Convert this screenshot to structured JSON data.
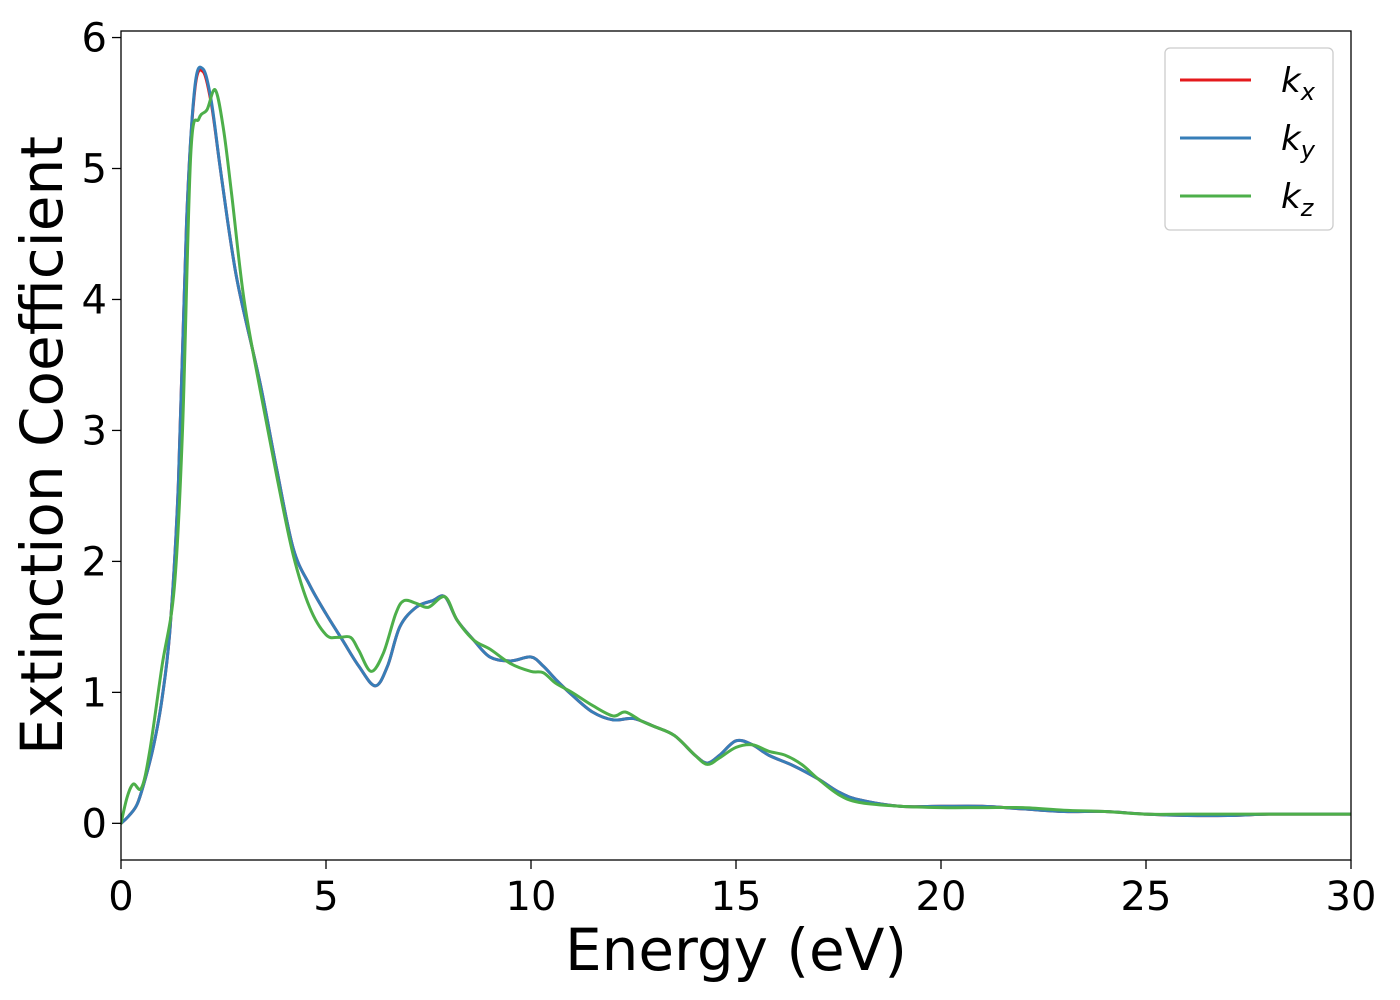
{
  "chart_data": {
    "type": "line",
    "title": "",
    "xlabel": "Energy (eV)",
    "ylabel": "Extinction Coefficient",
    "xlim": [
      0,
      30
    ],
    "ylim": [
      -0.28,
      6.05
    ],
    "xticks": [
      0,
      5,
      10,
      15,
      20,
      25,
      30
    ],
    "yticks": [
      0,
      1,
      2,
      3,
      4,
      5,
      6
    ],
    "grid": false,
    "legend": {
      "placement": "top-right"
    },
    "series": [
      {
        "name": "k",
        "subscript": "x",
        "color": "#e41a1c",
        "x": [
          0,
          0.2,
          0.4,
          0.6,
          0.8,
          1.0,
          1.2,
          1.4,
          1.6,
          1.8,
          2.0,
          2.2,
          2.4,
          2.6,
          2.8,
          3.0,
          3.4,
          3.8,
          4.2,
          4.6,
          5.0,
          5.4,
          5.8,
          6.2,
          6.5,
          6.8,
          7.2,
          7.6,
          7.9,
          8.2,
          8.6,
          9.0,
          9.5,
          10.0,
          10.3,
          10.6,
          11.0,
          11.5,
          12.0,
          12.5,
          13.0,
          13.5,
          14.0,
          14.3,
          14.6,
          15.0,
          15.4,
          15.8,
          16.4,
          17.0,
          17.5,
          18.0,
          19.0,
          20.0,
          21.0,
          22.0,
          23.0,
          24.0,
          25.0,
          26.0,
          27.0,
          28.0,
          29.0,
          30.0
        ],
        "y": [
          0.0,
          0.06,
          0.15,
          0.35,
          0.6,
          0.95,
          1.5,
          2.6,
          4.6,
          5.6,
          5.74,
          5.5,
          5.05,
          4.6,
          4.2,
          3.9,
          3.35,
          2.7,
          2.1,
          1.82,
          1.6,
          1.4,
          1.2,
          1.05,
          1.2,
          1.5,
          1.65,
          1.7,
          1.73,
          1.55,
          1.4,
          1.27,
          1.24,
          1.27,
          1.2,
          1.1,
          0.98,
          0.85,
          0.79,
          0.8,
          0.74,
          0.67,
          0.52,
          0.46,
          0.52,
          0.63,
          0.6,
          0.52,
          0.44,
          0.34,
          0.24,
          0.18,
          0.13,
          0.13,
          0.13,
          0.11,
          0.09,
          0.09,
          0.07,
          0.06,
          0.06,
          0.07,
          0.07,
          0.07
        ]
      },
      {
        "name": "k",
        "subscript": "y",
        "color": "#377eb8",
        "x": [
          0,
          0.2,
          0.4,
          0.6,
          0.8,
          1.0,
          1.2,
          1.4,
          1.6,
          1.8,
          2.0,
          2.2,
          2.4,
          2.6,
          2.8,
          3.0,
          3.4,
          3.8,
          4.2,
          4.6,
          5.0,
          5.4,
          5.8,
          6.2,
          6.5,
          6.8,
          7.2,
          7.6,
          7.9,
          8.2,
          8.6,
          9.0,
          9.5,
          10.0,
          10.3,
          10.6,
          11.0,
          11.5,
          12.0,
          12.5,
          13.0,
          13.5,
          14.0,
          14.3,
          14.6,
          15.0,
          15.4,
          15.8,
          16.4,
          17.0,
          17.5,
          18.0,
          19.0,
          20.0,
          21.0,
          22.0,
          23.0,
          24.0,
          25.0,
          26.0,
          27.0,
          28.0,
          29.0,
          30.0
        ],
        "y": [
          0.0,
          0.06,
          0.15,
          0.35,
          0.6,
          0.95,
          1.5,
          2.6,
          4.6,
          5.62,
          5.76,
          5.52,
          5.05,
          4.6,
          4.2,
          3.9,
          3.35,
          2.7,
          2.1,
          1.82,
          1.6,
          1.4,
          1.2,
          1.05,
          1.2,
          1.5,
          1.65,
          1.7,
          1.73,
          1.55,
          1.4,
          1.27,
          1.24,
          1.27,
          1.2,
          1.1,
          0.98,
          0.85,
          0.79,
          0.8,
          0.74,
          0.67,
          0.52,
          0.46,
          0.52,
          0.63,
          0.6,
          0.52,
          0.44,
          0.34,
          0.24,
          0.18,
          0.13,
          0.13,
          0.13,
          0.11,
          0.09,
          0.09,
          0.07,
          0.06,
          0.06,
          0.07,
          0.07,
          0.07
        ]
      },
      {
        "name": "k",
        "subscript": "z",
        "color": "#4daf4a",
        "x": [
          0,
          0.15,
          0.3,
          0.5,
          0.7,
          1.0,
          1.3,
          1.5,
          1.7,
          1.9,
          2.1,
          2.3,
          2.5,
          2.7,
          3.0,
          3.4,
          3.8,
          4.2,
          4.6,
          5.0,
          5.3,
          5.6,
          5.8,
          6.1,
          6.4,
          6.7,
          6.9,
          7.2,
          7.5,
          7.9,
          8.2,
          8.6,
          9.0,
          9.5,
          10.0,
          10.3,
          10.6,
          11.0,
          11.5,
          12.0,
          12.3,
          12.7,
          13.0,
          13.5,
          14.0,
          14.3,
          14.6,
          15.0,
          15.4,
          15.8,
          16.2,
          16.6,
          17.0,
          17.5,
          18.0,
          19.0,
          20.0,
          21.0,
          22.0,
          23.0,
          24.0,
          25.0,
          26.0,
          27.0,
          28.0,
          29.0,
          30.0
        ],
        "y": [
          0.0,
          0.2,
          0.3,
          0.27,
          0.55,
          1.2,
          1.8,
          3.0,
          5.1,
          5.38,
          5.45,
          5.6,
          5.3,
          4.8,
          4.0,
          3.3,
          2.65,
          2.05,
          1.65,
          1.44,
          1.42,
          1.42,
          1.32,
          1.16,
          1.3,
          1.6,
          1.7,
          1.68,
          1.65,
          1.73,
          1.55,
          1.4,
          1.33,
          1.22,
          1.16,
          1.15,
          1.07,
          1.0,
          0.9,
          0.82,
          0.85,
          0.78,
          0.74,
          0.67,
          0.52,
          0.45,
          0.5,
          0.58,
          0.6,
          0.55,
          0.52,
          0.45,
          0.34,
          0.22,
          0.16,
          0.13,
          0.12,
          0.12,
          0.12,
          0.1,
          0.09,
          0.07,
          0.07,
          0.07,
          0.07,
          0.07,
          0.07
        ]
      }
    ]
  }
}
